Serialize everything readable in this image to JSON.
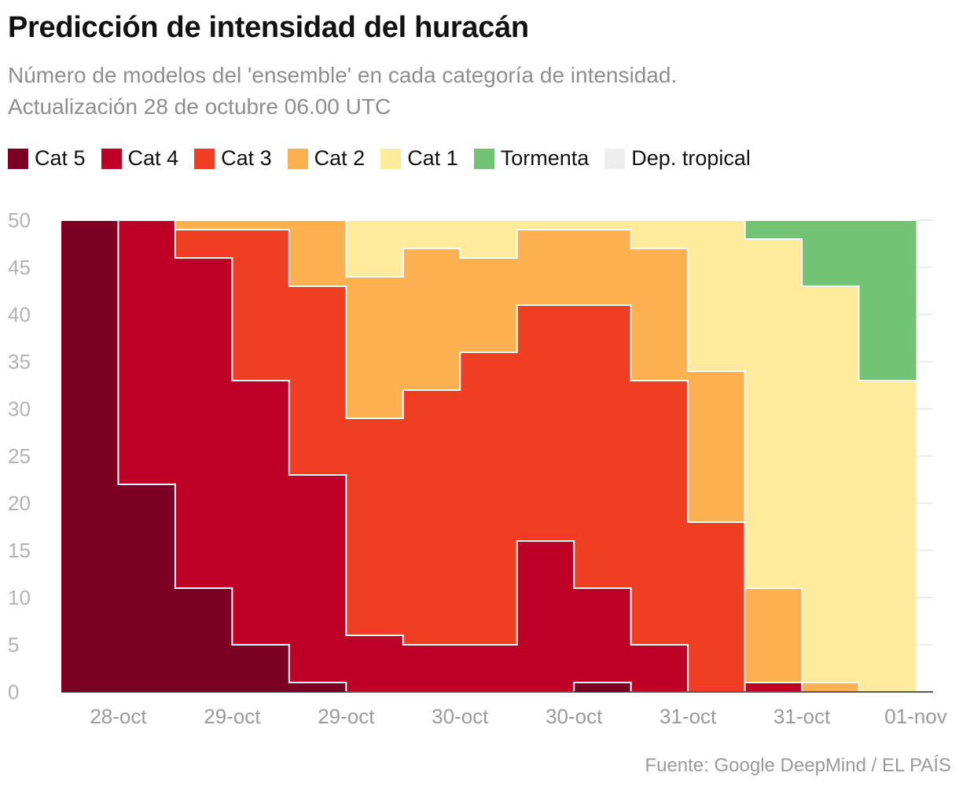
{
  "title": "Predicción de intensidad del huracán",
  "subtitle_line1": "Número de modelos del 'ensemble' en cada categoría de intensidad.",
  "subtitle_line2": "Actualización 28 de octubre 06.00 UTC",
  "source": "Fuente: Google DeepMind / EL PAÍS",
  "chart_data": {
    "type": "area",
    "stacked": true,
    "step": true,
    "ylim": [
      0,
      50
    ],
    "yticks": [
      0,
      5,
      10,
      15,
      20,
      25,
      30,
      35,
      40,
      45,
      50
    ],
    "xtick_labels": [
      "28-oct",
      "29-oct",
      "29-oct",
      "30-oct",
      "30-oct",
      "31-oct",
      "31-oct",
      "01-nov"
    ],
    "grid": true,
    "legend_position": "top",
    "categories": [
      "1",
      "2",
      "3",
      "4",
      "5",
      "6",
      "7",
      "8",
      "9",
      "10",
      "11",
      "12",
      "13",
      "14",
      "15"
    ],
    "series": [
      {
        "name": "Cat 5",
        "color": "#7c0024",
        "values": [
          50,
          22,
          11,
          5,
          1,
          0,
          0,
          0,
          0,
          1,
          0,
          0,
          0,
          0,
          0
        ]
      },
      {
        "name": "Cat 4",
        "color": "#be0026",
        "values": [
          0,
          28,
          35,
          28,
          22,
          6,
          5,
          5,
          16,
          10,
          5,
          0,
          1,
          0,
          0
        ]
      },
      {
        "name": "Cat 3",
        "color": "#f03e22",
        "values": [
          0,
          0,
          3,
          16,
          20,
          23,
          27,
          31,
          25,
          30,
          28,
          18,
          0,
          0,
          0
        ]
      },
      {
        "name": "Cat 2",
        "color": "#fdb04f",
        "values": [
          0,
          0,
          1,
          1,
          7,
          15,
          15,
          10,
          8,
          8,
          14,
          16,
          10,
          1,
          0
        ]
      },
      {
        "name": "Cat 1",
        "color": "#ffeb9c",
        "values": [
          0,
          0,
          0,
          0,
          0,
          6,
          3,
          4,
          1,
          1,
          3,
          16,
          37,
          42,
          33
        ]
      },
      {
        "name": "Tormenta",
        "color": "#73c375",
        "values": [
          0,
          0,
          0,
          0,
          0,
          0,
          0,
          0,
          0,
          0,
          0,
          0,
          2,
          7,
          17
        ]
      },
      {
        "name": "Dep. tropical",
        "color": "#eeeeee",
        "values": [
          0,
          0,
          0,
          0,
          0,
          0,
          0,
          0,
          0,
          0,
          0,
          0,
          0,
          0,
          0
        ]
      }
    ]
  }
}
